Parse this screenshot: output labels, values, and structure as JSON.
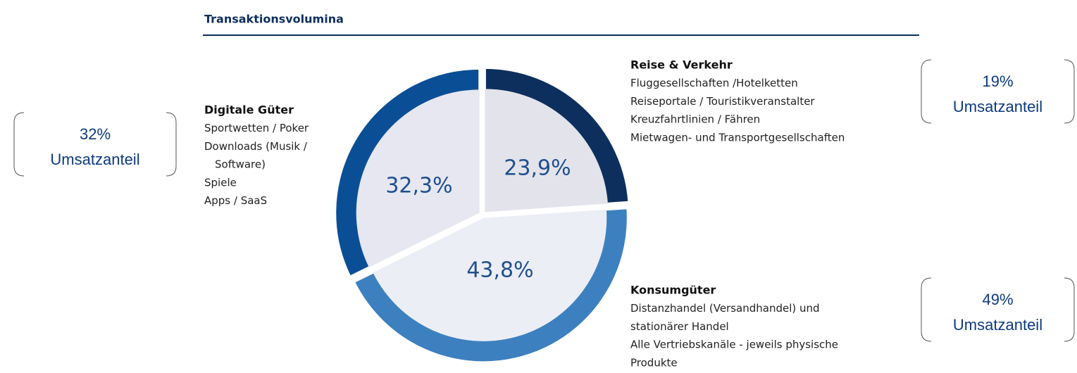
{
  "chart_data": {
    "type": "pie",
    "title": "Transaktionsvolumina",
    "categories": [
      "Reise & Verkehr",
      "Konsumgüter",
      "Digitale Güter"
    ],
    "values": [
      23.9,
      43.8,
      32.3
    ],
    "value_labels": [
      "23,9%",
      "43,8%",
      "32,3%"
    ],
    "colors": [
      "#0d2f5e",
      "#3d80bf",
      "#0a4f96"
    ],
    "inner_colors": [
      "#e3e4eb",
      "#eceef6",
      "#e6e7f0"
    ],
    "details": [
      [
        "Fluggesellschaften /Hotelketten",
        "Reiseportale / Touristikveranstalter",
        "Kreuzfahrtlinien / Fähren",
        "Mietwagen- und Transportgesellschaften"
      ],
      [
        "Distanzhandel (Versandhandel) und",
        "stationärer Handel",
        "Alle Vertriebskanäle - jeweils physische",
        "Produkte"
      ],
      [
        "Sportwetten / Poker",
        "Downloads (Musik /",
        "Software)",
        "Spiele",
        "Apps / SaaS"
      ]
    ],
    "annotations": [
      {
        "label": "19%",
        "text": "Umsatzanteil"
      },
      {
        "label": "49%",
        "text": "Umsatzanteil"
      },
      {
        "label": "32%",
        "text": "Umsatzanteil"
      }
    ]
  }
}
